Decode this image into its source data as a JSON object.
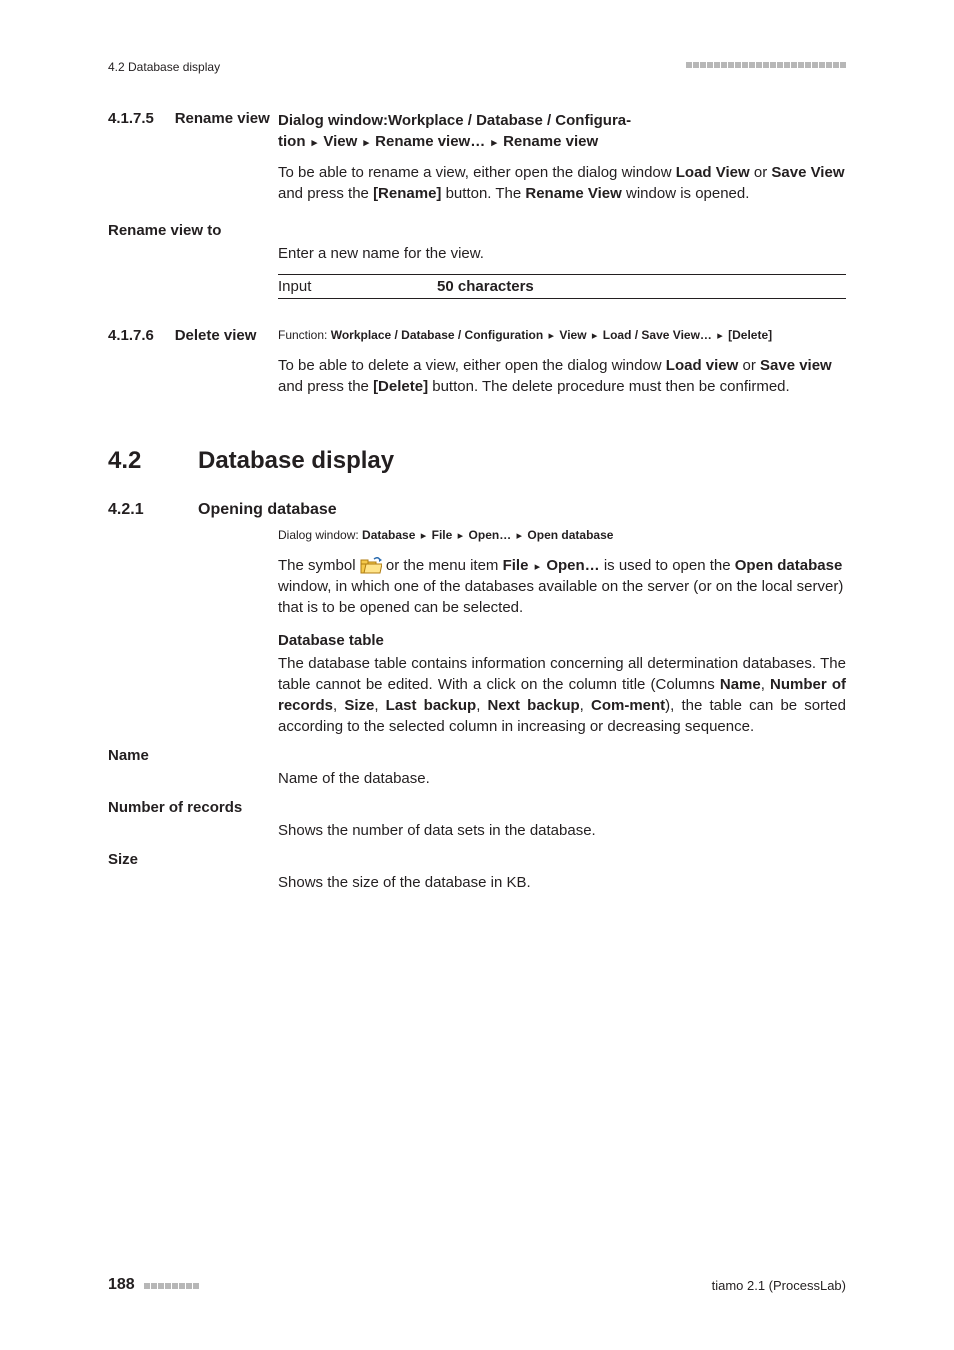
{
  "header": {
    "running": "4.2 Database display"
  },
  "sec_4_1_7_5": {
    "num": "4.1.7.5",
    "title": "Rename view",
    "dialog_prefix": "Dialog window:",
    "dialog_path_l1": "Workplace / Database / Configura-",
    "dialog_path_l2a": "tion",
    "dialog_path_l2b": "View",
    "dialog_path_l2c": "Rename view…",
    "dialog_path_l2d": "Rename view",
    "p1a": "To be able to rename a view, either open the dialog window ",
    "p1b": "Load View",
    "p1c": " or ",
    "p1d": "Save View",
    "p1e": " and press the ",
    "p1f": "[Rename]",
    "p1g": " button. The ",
    "p1h": "Rename View",
    "p1i": " window is opened.",
    "side_label": "Rename view to",
    "side_body": "Enter a new name for the view.",
    "input_label": "Input",
    "input_value": "50 characters"
  },
  "sec_4_1_7_6": {
    "num": "4.1.7.6",
    "title": "Delete view",
    "func_prefix": "Function: ",
    "func_a": "Workplace / Database / Configuration",
    "func_b": "View",
    "func_c": "Load / Save View…",
    "func_d": "[Delete]",
    "p1a": "To be able to delete a view, either open the dialog window ",
    "p1b": "Load view",
    "p1c": " or ",
    "p1d": "Save view",
    "p1e": " and press the ",
    "p1f": "[Delete]",
    "p1g": " button. The delete procedure must then be confirmed."
  },
  "sec_4_2": {
    "num": "4.2",
    "title": "Database display"
  },
  "sec_4_2_1": {
    "num": "4.2.1",
    "title": "Opening database",
    "dw_prefix": "Dialog window: ",
    "dw_a": "Database",
    "dw_b": "File",
    "dw_c": "Open…",
    "dw_d": "Open database",
    "p1a": "The symbol ",
    "p1b": " or the menu item ",
    "p1c": "File",
    "p1d": "Open…",
    "p1e": " is used to open the ",
    "p1f": "Open database",
    "p1g": " window, in which one of the databases available on the server (or on the local server) that is to be opened can be selected.",
    "dbtable_heading": "Database table",
    "p2a": "The database table contains information concerning all determination databases. The table cannot be edited. With a click on the column title (Columns ",
    "p2b": "Name",
    "p2c": ", ",
    "p2d": "Number of records",
    "p2e": ", ",
    "p2f": "Size",
    "p2g": ", ",
    "p2h": "Last backup",
    "p2i": ", ",
    "p2j": "Next backup",
    "p2k": ", ",
    "p2l": "Com-",
    "p2m": "ment",
    "p2n": "), the table can be sorted according to the selected column in increasing or decreasing sequence.",
    "name_label": "Name",
    "name_body": "Name of the database.",
    "nrec_label": "Number of records",
    "nrec_body": "Shows the number of data sets in the database.",
    "size_label": "Size",
    "size_body": "Shows the size of the database in KB."
  },
  "footer": {
    "page": "188",
    "product": "tiamo 2.1 (ProcessLab)"
  },
  "style": {
    "header_dot_count": 23,
    "footer_dot_count": 8
  }
}
